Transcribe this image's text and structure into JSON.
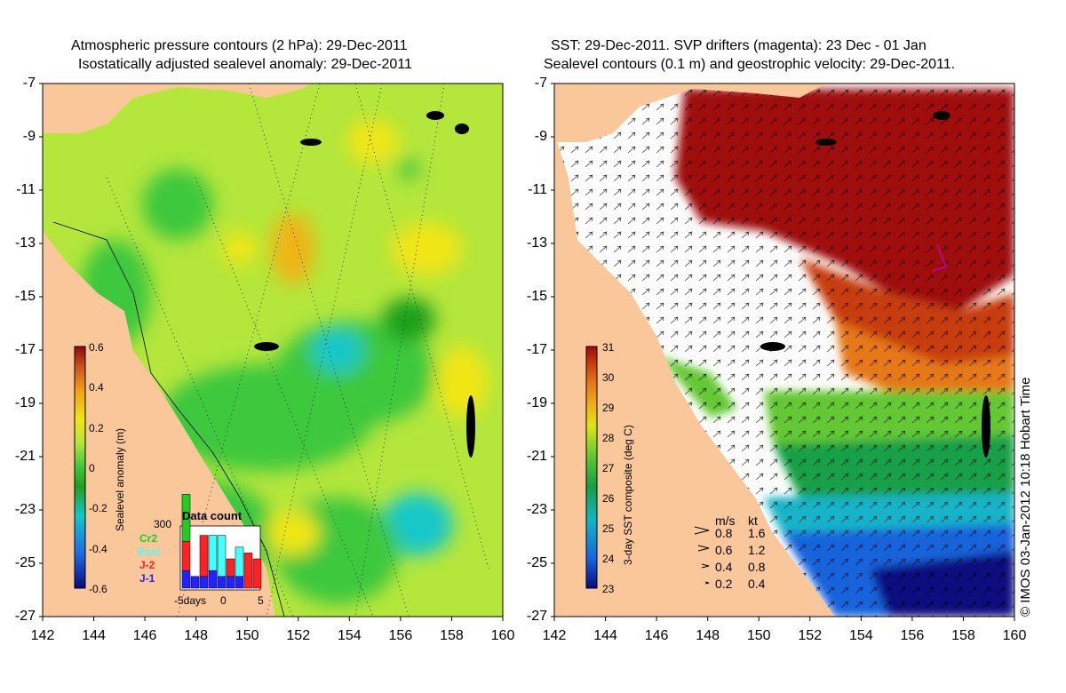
{
  "left_panel": {
    "title_line1": "Atmospheric pressure contours (2 hPa): 29-Dec-2011",
    "title_line2": "Isostatically adjusted sealevel anomaly: 29-Dec-2011",
    "colorbar": {
      "label": "Sealevel anomaly (m)",
      "ticks": [
        "0.6",
        "0.4",
        "0.2",
        "0",
        "-0.2",
        "-0.4",
        "-0.6"
      ]
    },
    "data_count_inset": {
      "title": "Data count",
      "max_label": "300",
      "legend": [
        {
          "label": "Cr2",
          "color": "#22cc22"
        },
        {
          "label": "Envi",
          "color": "#44ffff"
        },
        {
          "label": "J-2",
          "color": "#ff2222"
        },
        {
          "label": "J-1",
          "color": "#2222ff"
        }
      ],
      "x_labels": {
        "left": "-5days",
        "mid": "0",
        "right": "5"
      },
      "bars": [
        {
          "day": -5,
          "J-1": 0.3,
          "J-2": 0.5,
          "Envi": 0.0,
          "Cr2": 0.8
        },
        {
          "day": -4,
          "J-1": 0.2,
          "J-2": 0.0,
          "Envi": 0.0,
          "Cr2": 0.0
        },
        {
          "day": -3,
          "J-1": 0.2,
          "J-2": 0.7,
          "Envi": 0.0,
          "Cr2": 0.0
        },
        {
          "day": -2,
          "J-1": 0.3,
          "J-2": 0.0,
          "Envi": 0.6,
          "Cr2": 0.0
        },
        {
          "day": -1,
          "J-1": 0.2,
          "J-2": 0.0,
          "Envi": 0.7,
          "Cr2": 0.0
        },
        {
          "day": 0,
          "J-1": 0.2,
          "J-2": 0.3,
          "Envi": 0.0,
          "Cr2": 0.0
        },
        {
          "day": 1,
          "J-1": 0.2,
          "J-2": 0.0,
          "Envi": 0.5,
          "Cr2": 0.0
        },
        {
          "day": 2,
          "J-1": 0.0,
          "J-2": 0.6,
          "Envi": 0.0,
          "Cr2": 0.0
        },
        {
          "day": 3,
          "J-1": 0.0,
          "J-2": 0.5,
          "Envi": 0.0,
          "Cr2": 0.0
        }
      ]
    }
  },
  "right_panel": {
    "title_line1": "SST: 29-Dec-2011. SVP drifters (magenta): 23 Dec - 01 Jan",
    "title_line2": "Sealevel contours (0.1 m) and geostrophic velocity: 29-Dec-2011.",
    "colorbar": {
      "label": "3-day SST composite (deg C)",
      "ticks": [
        "31",
        "30",
        "29",
        "28",
        "27",
        "26",
        "25",
        "24",
        "23"
      ]
    },
    "velocity_legend": {
      "header_ms": "m/s",
      "header_kt": "kt",
      "rows": [
        {
          "ms": "0.8",
          "kt": "1.6"
        },
        {
          "ms": "0.6",
          "kt": "1.2"
        },
        {
          "ms": "0.4",
          "kt": "0.8"
        },
        {
          "ms": "0.2",
          "kt": "0.4"
        }
      ]
    },
    "credit": "© IMOS 03-Jan-2012 10:18 Hobart Time"
  },
  "axes": {
    "y_ticks": [
      "-7",
      "-9",
      "-11",
      "-13",
      "-15",
      "-17",
      "-19",
      "-21",
      "-23",
      "-25",
      "-27"
    ],
    "x_ticks": [
      "142",
      "144",
      "146",
      "148",
      "150",
      "152",
      "154",
      "156",
      "158",
      "160"
    ]
  },
  "colors": {
    "land": "#f9c79a",
    "sla_scale": [
      "#0a0a80",
      "#1e6ee6",
      "#12c8c8",
      "#1ea01e",
      "#3cc83c",
      "#b4e63c",
      "#f0e614",
      "#f0a014",
      "#c8501e",
      "#8c0a0a"
    ],
    "sst_scale": [
      "#0a0a80",
      "#1464dc",
      "#14b4c8",
      "#14a046",
      "#64c832",
      "#dce614",
      "#f0b414",
      "#e67814",
      "#c83c0a",
      "#a00a0a"
    ]
  }
}
